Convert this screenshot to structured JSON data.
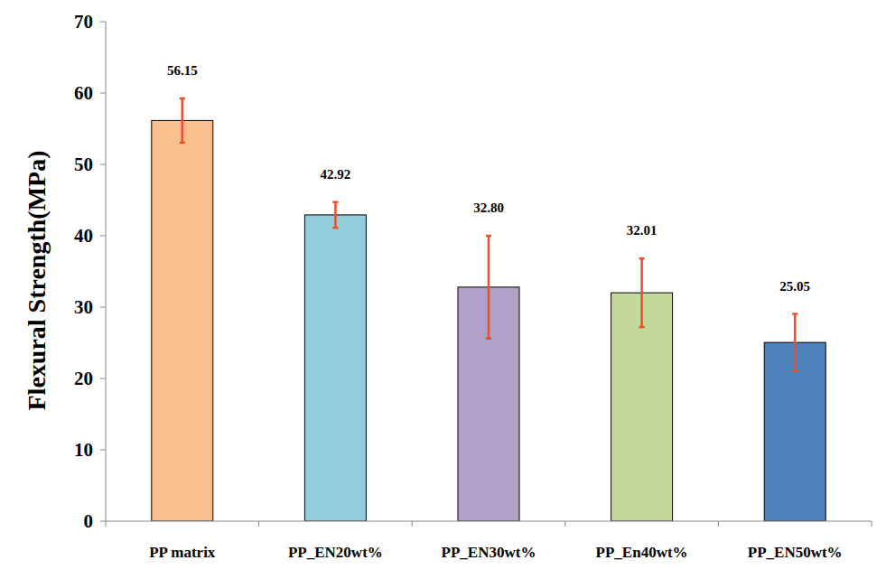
{
  "chart_data": {
    "type": "bar",
    "y_label": "Flexural Strength(MPa)",
    "categories": [
      "PP matrix",
      "PP_EN20wt%",
      "PP_EN30wt%",
      "PP_En40wt%",
      "PP_EN50wt%"
    ],
    "values": [
      56.15,
      42.92,
      32.8,
      32.01,
      25.05
    ],
    "value_labels": [
      "56.15",
      "42.92",
      "32.80",
      "32.01",
      "25.05"
    ],
    "errors": [
      3.1,
      1.8,
      7.2,
      4.8,
      4.0
    ],
    "colors": [
      "#f9bf8f",
      "#92cddc",
      "#b1a0c7",
      "#c4d79b",
      "#4f81bd"
    ],
    "ylim": [
      0,
      70
    ],
    "yticks": [
      0,
      10,
      20,
      30,
      40,
      50,
      60,
      70
    ],
    "grid": false,
    "data_labels": true
  }
}
